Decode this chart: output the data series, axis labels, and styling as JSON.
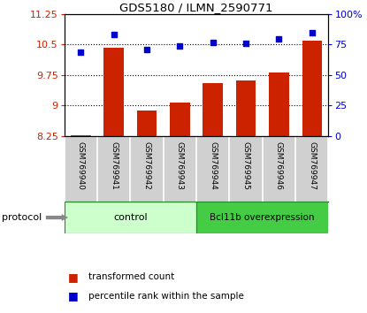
{
  "title": "GDS5180 / ILMN_2590771",
  "categories": [
    "GSM769940",
    "GSM769941",
    "GSM769942",
    "GSM769943",
    "GSM769944",
    "GSM769945",
    "GSM769946",
    "GSM769947"
  ],
  "bar_values": [
    8.27,
    10.42,
    8.88,
    9.08,
    9.55,
    9.62,
    9.82,
    10.6
  ],
  "dot_values": [
    69,
    83,
    71,
    74,
    77,
    76,
    80,
    85
  ],
  "ylim_left": [
    8.25,
    11.25
  ],
  "ylim_right": [
    0,
    100
  ],
  "yticks_left": [
    8.25,
    9.0,
    9.75,
    10.5,
    11.25
  ],
  "yticks_right": [
    0,
    25,
    50,
    75,
    100
  ],
  "ytick_labels_left": [
    "8.25",
    "9",
    "9.75",
    "10.5",
    "11.25"
  ],
  "ytick_labels_right": [
    "0",
    "25",
    "50",
    "75",
    "100%"
  ],
  "hlines": [
    9.0,
    9.75,
    10.5
  ],
  "bar_color": "#cc2200",
  "dot_color": "#0000cc",
  "bar_width": 0.6,
  "control_label": "control",
  "overexp_label": "Bcl11b overexpression",
  "protocol_label": "protocol",
  "legend_bar_label": "transformed count",
  "legend_dot_label": "percentile rank within the sample",
  "control_color": "#ccffcc",
  "overexp_color": "#44cc44",
  "group_bar_edge": "#228822",
  "left_tick_color": "#cc2200",
  "right_tick_color": "#0000cc",
  "axis_bg": "#d0d0d0",
  "plot_bg": "#ffffff",
  "n_control": 4,
  "n_total": 8
}
